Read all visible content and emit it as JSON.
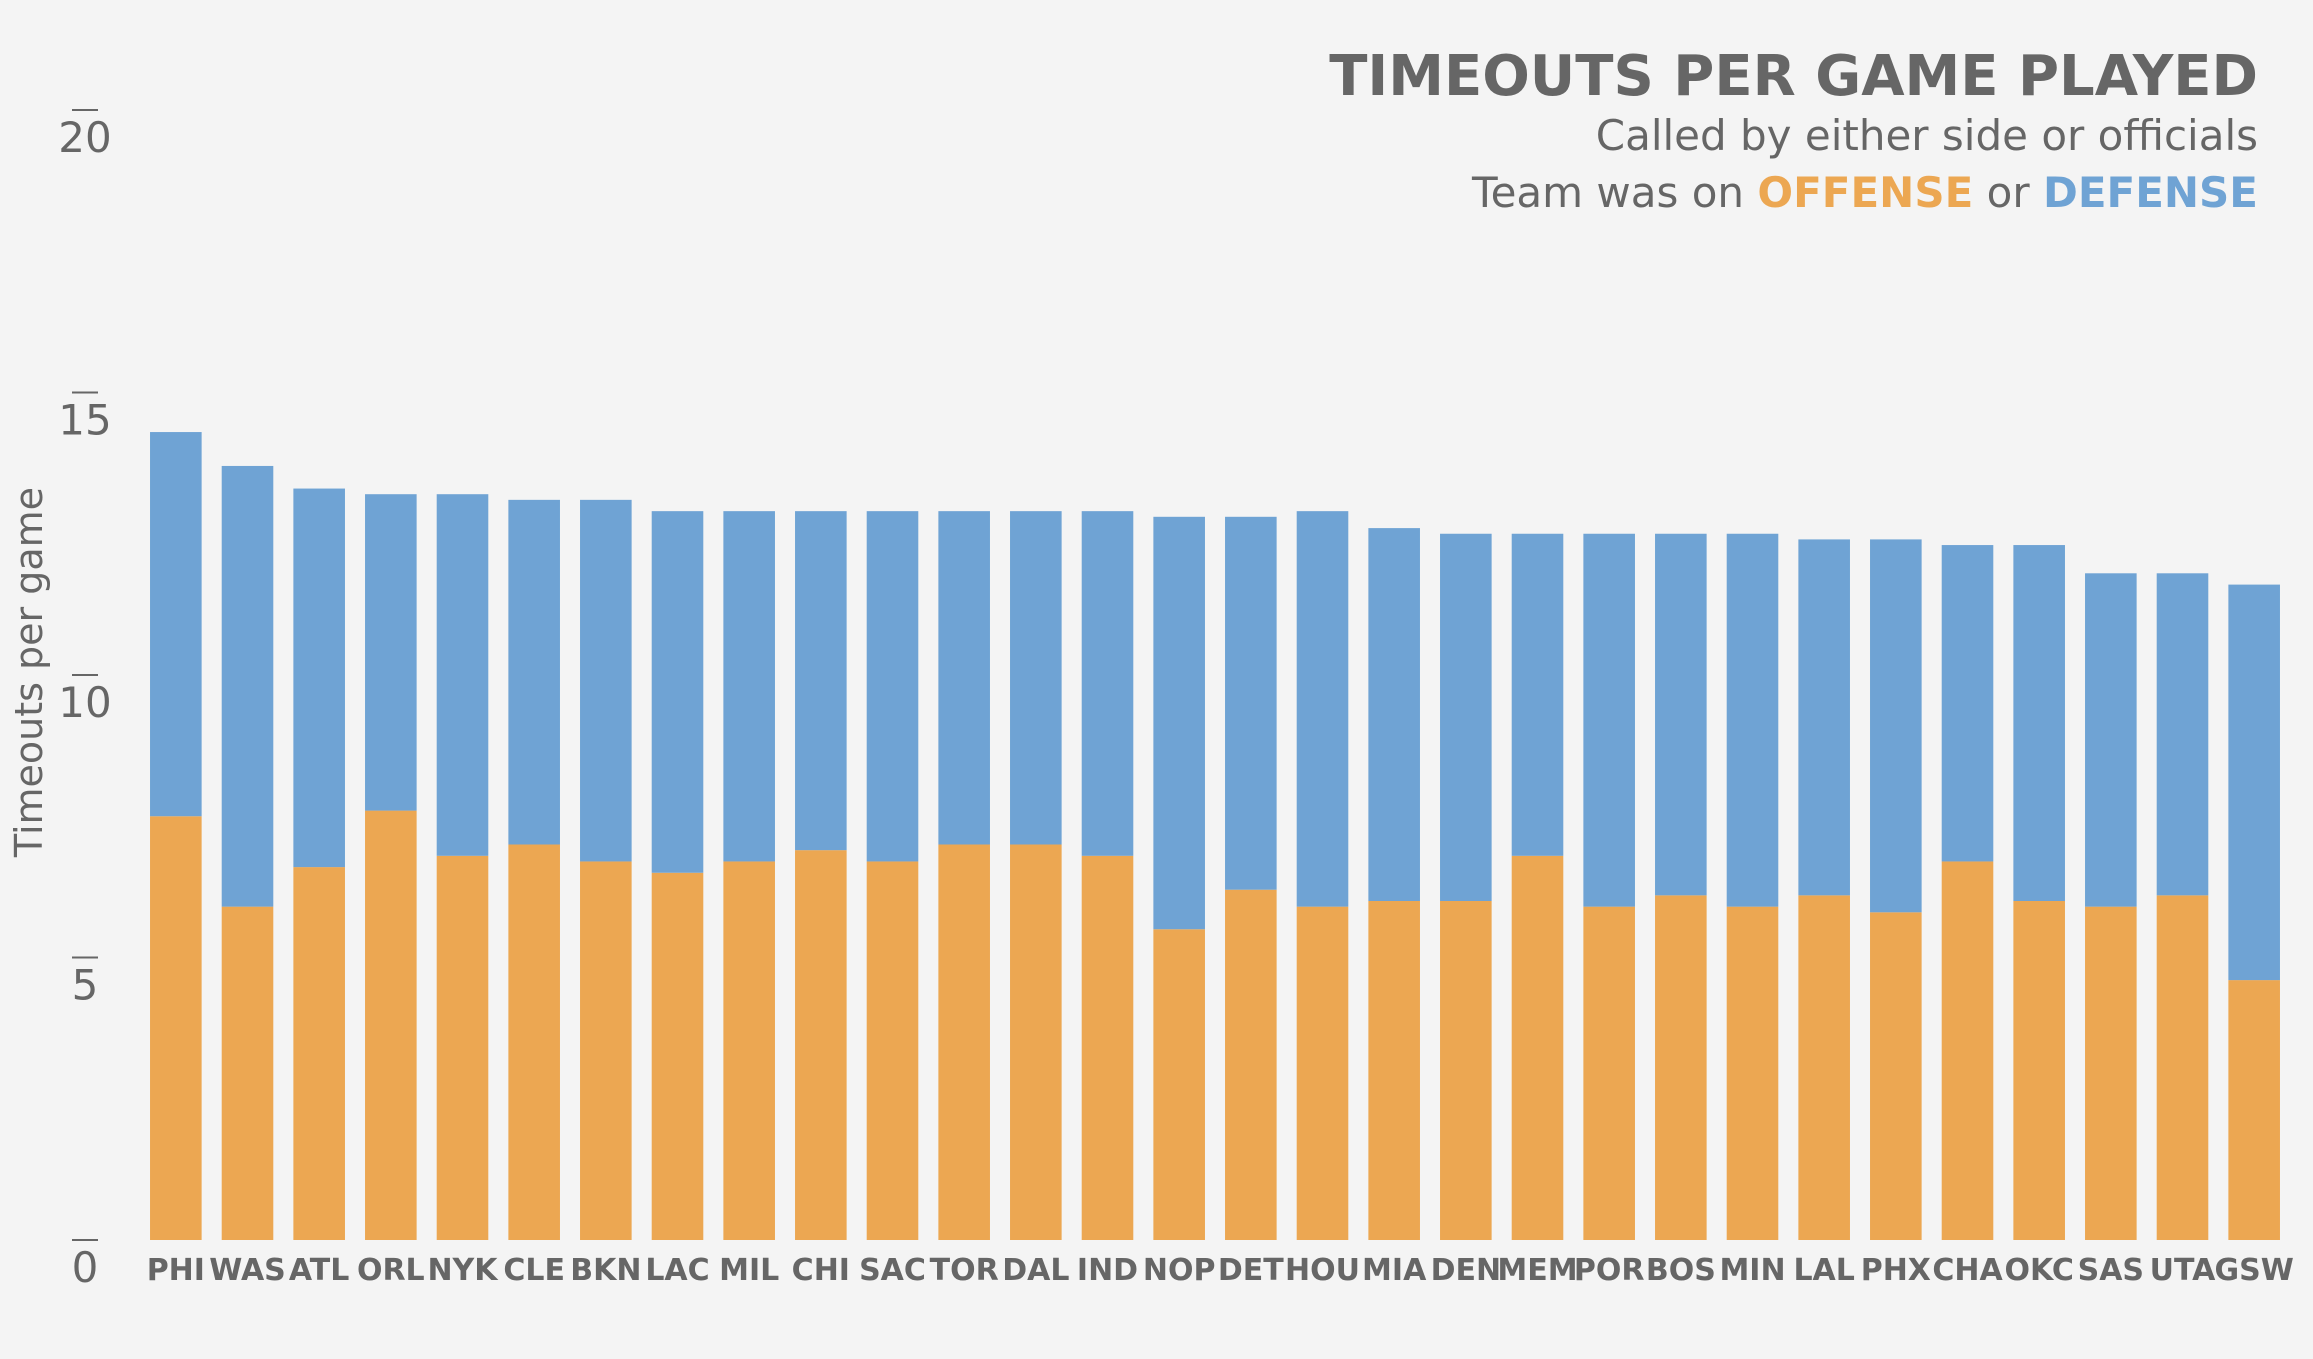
{
  "colors": {
    "background": "#f4f4f4",
    "offense": "#ECA752",
    "defense": "#6FA3D4",
    "text": "#666666"
  },
  "chart_data": {
    "type": "bar",
    "stacked": true,
    "title": "TIMEOUTS PER GAME PLAYED",
    "subtitle": "Called by either side or officials",
    "legend_line": {
      "prefix": "Team was on ",
      "offense_label": "OFFENSE",
      "joiner": " or ",
      "defense_label": "DEFENSE"
    },
    "ylabel": "Timeouts per game",
    "xlabel": "",
    "ylim": [
      0,
      20
    ],
    "yticks": [
      0,
      5,
      10,
      15,
      20
    ],
    "grid": false,
    "categories": [
      "PHI",
      "WAS",
      "ATL",
      "ORL",
      "NYK",
      "CLE",
      "BKN",
      "LAC",
      "MIL",
      "CHI",
      "SAC",
      "TOR",
      "DAL",
      "IND",
      "NOP",
      "DET",
      "HOU",
      "MIA",
      "DEN",
      "MEM",
      "POR",
      "BOS",
      "MIN",
      "LAL",
      "PHX",
      "CHA",
      "OKC",
      "SAS",
      "UTA",
      "GSW"
    ],
    "series": [
      {
        "key": "offense",
        "values": [
          7.5,
          5.9,
          6.6,
          7.6,
          6.8,
          7.0,
          6.7,
          6.5,
          6.7,
          6.9,
          6.7,
          7.0,
          7.0,
          6.8,
          5.5,
          6.2,
          5.9,
          6.0,
          6.0,
          6.8,
          5.9,
          6.1,
          5.9,
          6.1,
          5.8,
          6.7,
          6.0,
          5.9,
          6.1,
          4.6
        ]
      },
      {
        "key": "defense",
        "values": [
          6.8,
          7.8,
          6.7,
          5.6,
          6.4,
          6.1,
          6.4,
          6.4,
          6.2,
          6.0,
          6.2,
          5.9,
          5.9,
          6.1,
          7.3,
          6.6,
          7.0,
          6.6,
          6.5,
          5.7,
          6.6,
          6.4,
          6.6,
          6.3,
          6.6,
          5.6,
          6.3,
          5.9,
          5.7,
          7.0
        ]
      }
    ]
  }
}
